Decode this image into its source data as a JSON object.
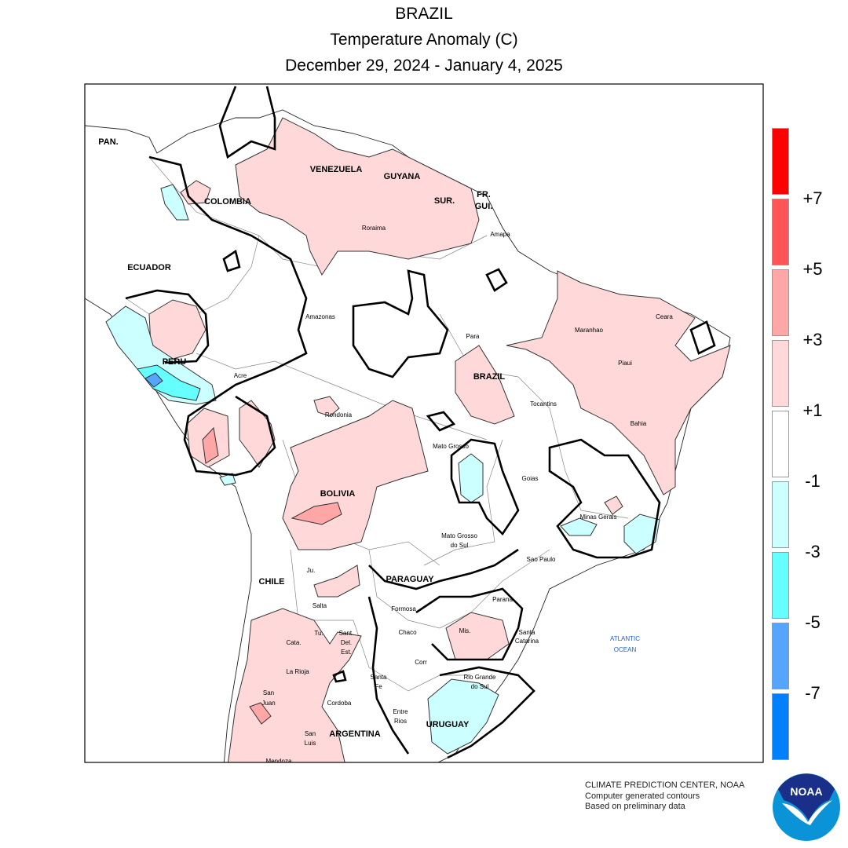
{
  "header": {
    "title": "BRAZIL",
    "subtitle": "Temperature Anomaly (C)",
    "date_range": "December 29, 2024 - January 4, 2025"
  },
  "legend": {
    "bins": [
      {
        "color": "#ff0000"
      },
      {
        "color": "#ff5555"
      },
      {
        "color": "#ffa6a6"
      },
      {
        "color": "#ffd9d9"
      },
      {
        "color": "#ffffff"
      },
      {
        "color": "#ccffff"
      },
      {
        "color": "#66ffff"
      },
      {
        "color": "#55a5ff"
      },
      {
        "color": "#0080ff"
      }
    ],
    "labels": [
      "+7",
      "+5",
      "+3",
      "+1",
      "-1",
      "-3",
      "-5",
      "-7"
    ]
  },
  "map": {
    "labels": {
      "pan": "PAN.",
      "venezuela": "VENEZUELA",
      "guyana": "GUYANA",
      "sur": "SUR.",
      "fr": "FR.",
      "gui": "GUI.",
      "colombia": "COLOMBIA",
      "ecuador": "ECUADOR",
      "peru": "PERU",
      "roraima": "Roraima",
      "amapa": "Amapa",
      "amazonas": "Amazonas",
      "para": "Para",
      "maranhao": "Maranhao",
      "ceara": "Ceara",
      "piaui": "Piaui",
      "brazil": "BRAZIL",
      "acre": "Acre",
      "rondonia": "Rondonia",
      "tocantins": "Tocantins",
      "bahia": "Bahia",
      "mato_grosso": "Mato Grosso",
      "goias": "Goias",
      "bolivia": "BOLIVIA",
      "minas_gerais": "Minas Gerais",
      "mato_grosso_do_sul_1": "Mato Grosso",
      "mato_grosso_do_sul_2": "do Sul",
      "sao_paulo": "Sao Paulo",
      "paraguay": "PARAGUAY",
      "chile": "CHILE",
      "ju": "Ju.",
      "salta": "Salta",
      "formosa": "Formosa",
      "parana": "Parana",
      "cata": "Cata.",
      "tu": "Tu.",
      "sant": "Sant.",
      "del": "Del.",
      "est": "Est.",
      "chaco": "Chaco",
      "mis": "Mis.",
      "santa_catarina_1": "Santa",
      "santa_catarina_2": "Catarina",
      "atlantic": "ATLANTIC",
      "ocean": "OCEAN",
      "corr": "Corr",
      "la_rioja": "La Rioja",
      "santa_fe_1": "Santa",
      "santa_fe_2": "Fe",
      "rgs_1": "Rio Grande",
      "rgs_2": "do Sul",
      "san_juan_1": "San",
      "san_juan_2": "Juan",
      "cordoba": "Cordoba",
      "uruguay": "URUGUAY",
      "entre_rios_1": "Entre",
      "entre_rios_2": "Rios",
      "san_luis_1": "San",
      "san_luis_2": "Luis",
      "argentina": "ARGENTINA",
      "mendoza": "Mendoza"
    },
    "ocean_label_color": "#1f5fd0"
  },
  "footer": {
    "line1": "CLIMATE PREDICTION CENTER, NOAA",
    "line2": "Computer generated contours",
    "line3": "Based on preliminary data",
    "logo_text": "NOAA"
  }
}
